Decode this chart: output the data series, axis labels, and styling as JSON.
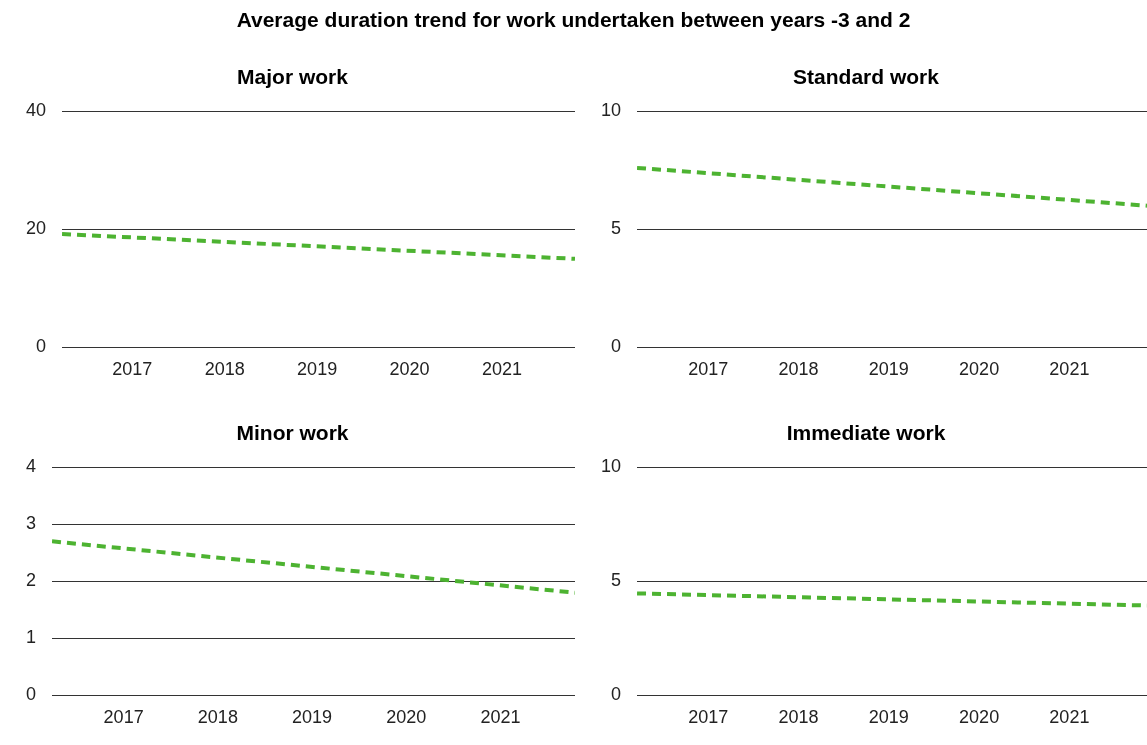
{
  "chart_data": [
    {
      "type": "other",
      "title": "Average duration trend for work undertaken between years -3 and 2"
    },
    {
      "type": "line",
      "title": "Major work",
      "x": [
        2016.24,
        2021.79
      ],
      "values": [
        19.2,
        15.0
      ],
      "color": "#4db331",
      "line_style": "dashed",
      "marker": "none",
      "grid": "y",
      "xlim": [
        2016.24,
        2021.79
      ],
      "xticks": [
        2017,
        2018,
        2019,
        2020,
        2021
      ],
      "ylim": [
        0,
        40
      ],
      "yticks": [
        0,
        20,
        40
      ]
    },
    {
      "type": "line",
      "title": "Standard work",
      "x": [
        2016.21,
        2021.86
      ],
      "values": [
        7.6,
        6.0
      ],
      "color": "#4db331",
      "line_style": "dashed",
      "marker": "none",
      "grid": "y",
      "xlim": [
        2016.21,
        2021.86
      ],
      "xticks": [
        2017,
        2018,
        2019,
        2020,
        2021
      ],
      "ylim": [
        0,
        10
      ],
      "yticks": [
        0,
        5,
        10
      ]
    },
    {
      "type": "line",
      "title": "Minor work",
      "x": [
        2016.24,
        2021.79
      ],
      "values": [
        2.7,
        1.8
      ],
      "color": "#4db331",
      "line_style": "dashed",
      "marker": "none",
      "grid": "y",
      "xlim": [
        2016.24,
        2021.79
      ],
      "xticks": [
        2017,
        2018,
        2019,
        2020,
        2021
      ],
      "ylim": [
        0,
        4
      ],
      "yticks": [
        0,
        1,
        2,
        3,
        4
      ]
    },
    {
      "type": "line",
      "title": "Immediate work",
      "x": [
        2016.21,
        2021.86
      ],
      "values": [
        4.47,
        3.94
      ],
      "color": "#4db331",
      "line_style": "dashed",
      "marker": "none",
      "grid": "y",
      "xlim": [
        2016.21,
        2021.86
      ],
      "xticks": [
        2017,
        2018,
        2019,
        2020,
        2021
      ],
      "ylim": [
        0,
        10
      ],
      "yticks": [
        0,
        5,
        10
      ]
    }
  ]
}
